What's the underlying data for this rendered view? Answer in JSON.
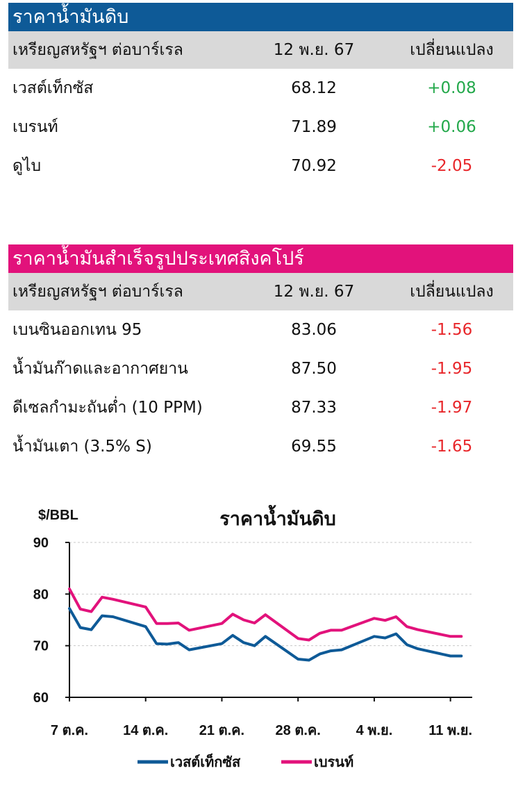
{
  "crude_table": {
    "title": "ราคาน้ำมันดิบ",
    "header": [
      "เหรียญสหรัฐฯ ต่อบาร์เรล",
      "12 พ.ย. 67",
      "เปลี่ยนแปลง"
    ],
    "rows": [
      {
        "name": "เวสต์เท็กซัส",
        "price": "68.12",
        "change": "+0.08",
        "direction": "up"
      },
      {
        "name": "เบรนท์",
        "price": "71.89",
        "change": "+0.06",
        "direction": "up"
      },
      {
        "name": "ดูไบ",
        "price": "70.92",
        "change": "-2.05",
        "direction": "down"
      }
    ]
  },
  "refined_table": {
    "title": "ราคาน้ำมันสำเร็จรูปประเทศสิงคโปร์",
    "header": [
      "เหรียญสหรัฐฯ ต่อบาร์เรล",
      "12 พ.ย. 67",
      "เปลี่ยนแปลง"
    ],
    "rows": [
      {
        "name": "เบนซินออกเทน 95",
        "price": "83.06",
        "change": "-1.56",
        "direction": "down"
      },
      {
        "name": "น้ำมันก๊าดและอากาศยาน",
        "price": "87.50",
        "change": "-1.95",
        "direction": "down"
      },
      {
        "name": "ดีเซลกำมะถันต่ำ (10 PPM)",
        "price": "87.33",
        "change": "-1.97",
        "direction": "down"
      },
      {
        "name": "น้ำมันเตา (3.5% S)",
        "price": "69.55",
        "change": "-1.65",
        "direction": "down"
      }
    ]
  },
  "colors": {
    "crude_header": "#0e5a97",
    "refined_header": "#e2127b",
    "up": "#22a84a",
    "down": "#e8262a",
    "header_row": "#d9d9d9"
  },
  "chart_data": {
    "type": "line",
    "title": "ราคาน้ำมันดิบ",
    "ylabel": "$/BBL",
    "ylim": [
      60,
      90
    ],
    "yticks": [
      60,
      70,
      80,
      90
    ],
    "xlim": [
      0,
      37
    ],
    "xticks": [
      {
        "x": 0,
        "label": "7 ต.ค."
      },
      {
        "x": 7,
        "label": "14 ต.ค."
      },
      {
        "x": 14,
        "label": "21 ต.ค."
      },
      {
        "x": 21,
        "label": "28 ต.ค."
      },
      {
        "x": 28,
        "label": "4 พ.ย."
      },
      {
        "x": 35,
        "label": "11 พ.ย."
      }
    ],
    "grid": "horizontal dashed",
    "legend_position": "bottom",
    "series": [
      {
        "name": "เวสต์เท็กซัส",
        "color": "#0e5a97",
        "x": [
          0,
          1,
          2,
          3,
          4,
          7,
          8,
          9,
          10,
          11,
          14,
          15,
          16,
          17,
          18,
          21,
          22,
          23,
          24,
          25,
          28,
          29,
          30,
          31,
          32,
          35,
          36
        ],
        "y": [
          77.2,
          73.5,
          73.1,
          75.8,
          75.6,
          73.7,
          70.4,
          70.3,
          70.6,
          69.2,
          70.4,
          72.0,
          70.6,
          70.0,
          71.8,
          67.4,
          67.2,
          68.4,
          69.0,
          69.2,
          71.8,
          71.5,
          72.3,
          70.2,
          69.4,
          68.0,
          68.0
        ]
      },
      {
        "name": "เบรนท์",
        "color": "#e2127b",
        "x": [
          0,
          1,
          2,
          3,
          4,
          7,
          8,
          9,
          10,
          11,
          14,
          15,
          16,
          17,
          18,
          21,
          22,
          23,
          24,
          25,
          28,
          29,
          30,
          31,
          32,
          35,
          36
        ],
        "y": [
          81.0,
          77.1,
          76.6,
          79.4,
          79.0,
          77.5,
          74.3,
          74.3,
          74.4,
          73.0,
          74.3,
          76.1,
          75.0,
          74.4,
          76.0,
          71.4,
          71.1,
          72.4,
          73.0,
          73.0,
          75.3,
          74.9,
          75.6,
          73.7,
          73.1,
          71.8,
          71.8
        ]
      }
    ]
  }
}
